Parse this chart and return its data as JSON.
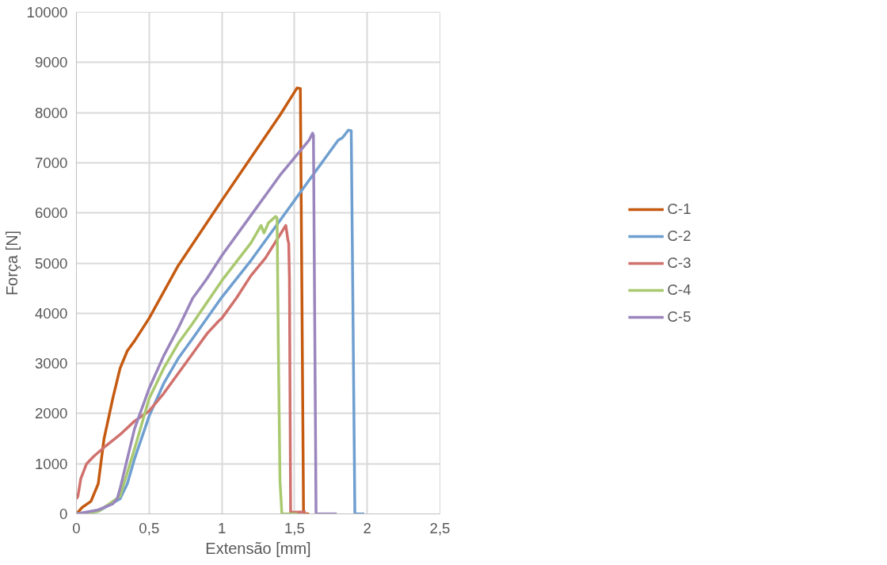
{
  "chart_data": {
    "type": "line",
    "xlabel": "Extensão [mm]",
    "ylabel": "Força [N]",
    "xlim": [
      0,
      2.5
    ],
    "xticks": [
      0,
      {
        "value": 0.5,
        "label": "0,5"
      },
      1,
      {
        "value": 1.5,
        "label": "1,5"
      },
      2,
      {
        "value": 2.5,
        "label": "2,5"
      }
    ],
    "ylim": [
      0,
      10000
    ],
    "yticks": [
      0,
      1000,
      2000,
      3000,
      4000,
      5000,
      6000,
      7000,
      8000,
      9000,
      10000
    ],
    "grid": true,
    "legend": "right",
    "marker": "none",
    "line_style": "solid",
    "series": [
      {
        "name": "C-1",
        "color": "#c55a11",
        "x": [
          0,
          0.04,
          0.1,
          0.15,
          0.19,
          0.25,
          0.3,
          0.35,
          0.4,
          0.5,
          0.7,
          1,
          1.2,
          1.4,
          1.517,
          1.54,
          1.562,
          1.6
        ],
        "values": [
          0,
          130,
          250,
          600,
          1500,
          2300,
          2900,
          3250,
          3450,
          3900,
          4950,
          6250,
          7100,
          7950,
          8490,
          8480,
          0,
          0
        ]
      },
      {
        "name": "C-2",
        "color": "#6f9fd0",
        "x": [
          0,
          0.15,
          0.3,
          0.35,
          0.4,
          0.5,
          0.6,
          0.7,
          0.8,
          1,
          1.2,
          1.4,
          1.6,
          1.8,
          1.83,
          1.87,
          1.89,
          1.915,
          1.98
        ],
        "values": [
          0,
          50,
          300,
          600,
          1100,
          1950,
          2600,
          3100,
          3500,
          4320,
          5050,
          5850,
          6650,
          7450,
          7500,
          7650,
          7640,
          0,
          0
        ]
      },
      {
        "name": "C-3",
        "color": "#d0716d",
        "x": [
          0,
          0.01,
          0.03,
          0.07,
          0.12,
          0.2,
          0.3,
          0.4,
          0.5,
          0.6,
          0.7,
          0.8,
          0.9,
          0.98,
          1,
          1.1,
          1.2,
          1.3,
          1.44,
          1.455,
          1.46,
          1.465,
          1.473,
          1.577
        ],
        "values": [
          300,
          350,
          700,
          1000,
          1150,
          1350,
          1580,
          1850,
          2050,
          2400,
          2800,
          3200,
          3600,
          3850,
          3900,
          4300,
          4750,
          5100,
          5750,
          5450,
          5400,
          4700,
          30,
          40
        ]
      },
      {
        "name": "C-4",
        "color": "#a9c96f",
        "x": [
          0,
          0.15,
          0.3,
          0.4,
          0.5,
          0.6,
          0.7,
          0.8,
          1,
          1.2,
          1.26,
          1.27,
          1.29,
          1.32,
          1.37,
          1.38,
          1.39,
          1.4,
          1.413,
          1.52
        ],
        "values": [
          0,
          50,
          350,
          1300,
          2300,
          2900,
          3400,
          3800,
          4650,
          5400,
          5700,
          5750,
          5600,
          5800,
          5930,
          5900,
          3000,
          650,
          0,
          0
        ]
      },
      {
        "name": "C-5",
        "color": "#9a86bd",
        "x": [
          0,
          0.15,
          0.25,
          0.28,
          0.3,
          0.35,
          0.4,
          0.5,
          0.6,
          0.7,
          0.8,
          0.9,
          1,
          1.2,
          1.4,
          1.6,
          1.624,
          1.63,
          1.648,
          1.79
        ],
        "values": [
          0,
          80,
          200,
          300,
          500,
          1100,
          1700,
          2500,
          3150,
          3700,
          4300,
          4700,
          5150,
          5950,
          6750,
          7450,
          7590,
          7550,
          0,
          0
        ]
      }
    ]
  }
}
